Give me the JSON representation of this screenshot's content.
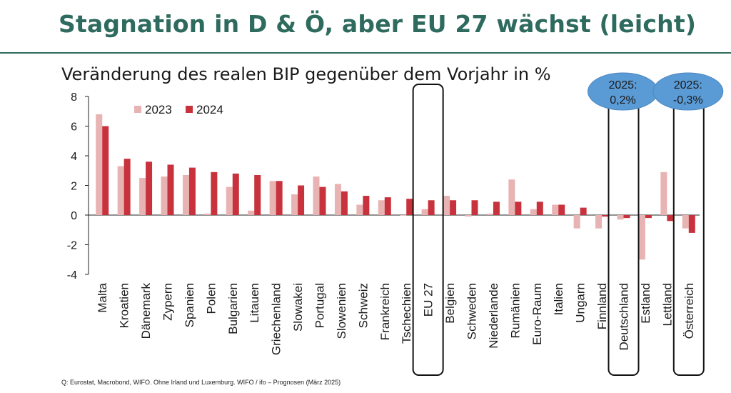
{
  "title": "Stagnation in D & Ö, aber EU 27 wächst (leicht)",
  "source": "Q: Eurostat, Macrobond, WIFO. Ohne Irland und Luxemburg. WIFO / ifo – Prognosen (März 2025)",
  "colors": {
    "title": "#2e6b5e",
    "series2023": "#e8b3b3",
    "series2024": "#c8323c",
    "callout": "#5b9bd5"
  },
  "chart_data": {
    "type": "bar",
    "title": "Veränderung des realen BIP gegenüber dem Vorjahr in %",
    "xlabel": "",
    "ylabel": "",
    "ylim": [
      -4,
      8
    ],
    "yticks": [
      "-4",
      "-2",
      "0",
      "2",
      "4",
      "6",
      "8"
    ],
    "legend_position": "top-left",
    "categories": [
      "Malta",
      "Kroatien",
      "Dänemark",
      "Zypern",
      "Spanien",
      "Polen",
      "Bulgarien",
      "Litauen",
      "Griechenland",
      "Slowakei",
      "Portugal",
      "Slowenien",
      "Schweiz",
      "Frankreich",
      "Tschechien",
      "EU 27",
      "Belgien",
      "Schweden",
      "Niederlande",
      "Rumänien",
      "Euro-Raum",
      "Italien",
      "Ungarn",
      "Finnland",
      "Deutschland",
      "Estland",
      "Lettland",
      "Österreich"
    ],
    "series": [
      {
        "name": "2023",
        "values": [
          6.8,
          3.3,
          2.5,
          2.6,
          2.7,
          0.1,
          1.9,
          0.3,
          2.3,
          1.4,
          2.6,
          2.1,
          0.7,
          1.0,
          0.0,
          0.4,
          1.3,
          -0.1,
          0.1,
          2.4,
          0.4,
          0.7,
          -0.9,
          -0.9,
          -0.3,
          -3.0,
          2.9,
          -0.9
        ]
      },
      {
        "name": "2024",
        "values": [
          6.0,
          3.8,
          3.6,
          3.4,
          3.2,
          2.9,
          2.8,
          2.7,
          2.3,
          2.0,
          1.9,
          1.6,
          1.3,
          1.2,
          1.1,
          1.0,
          1.0,
          1.0,
          0.9,
          0.9,
          0.9,
          0.7,
          0.5,
          -0.1,
          -0.2,
          -0.2,
          -0.4,
          -1.2
        ]
      }
    ],
    "highlighted_categories": [
      "EU 27",
      "Deutschland",
      "Österreich"
    ],
    "annotations": [
      {
        "target": "Deutschland",
        "line1": "2025:",
        "line2": "0,2%"
      },
      {
        "target": "Österreich",
        "line1": "2025:",
        "line2": "-0,3%"
      }
    ]
  }
}
